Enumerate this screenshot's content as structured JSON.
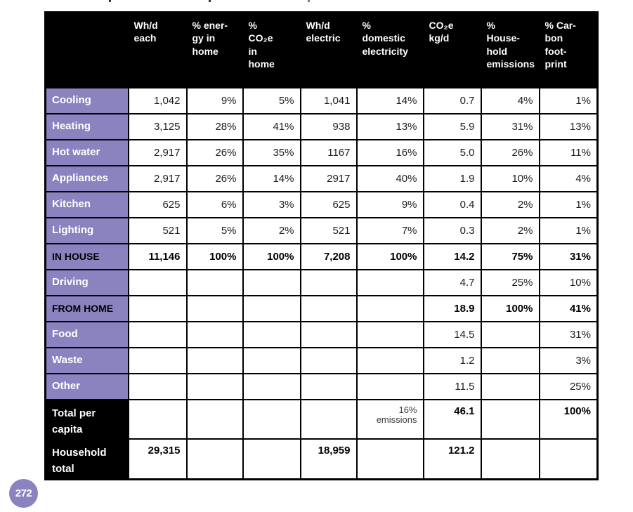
{
  "page": {
    "badge_number": "272"
  },
  "table": {
    "column_headers": [
      "",
      "Wh/d\neach",
      "% ener-\ngy in\nhome",
      "%\nCO₂e\nin\nhome",
      "Wh/d\nelectric",
      "%\ndomestic\nelectricity",
      "CO₂e\nkg/d",
      "%\nHouse-\nhold\nemissions",
      "% Car-\nbon\nfoot-\nprint"
    ],
    "rows": [
      {
        "label": "Cooling",
        "label_style": "purple",
        "size": "normal",
        "cells": [
          {
            "t": "1,042"
          },
          {
            "t": "9%"
          },
          {
            "t": "5%"
          },
          {
            "t": "1,041"
          },
          {
            "t": "14%"
          },
          {
            "t": "0.7"
          },
          {
            "t": "4%"
          },
          {
            "t": "1%"
          }
        ]
      },
      {
        "label": "Heating",
        "label_style": "purple",
        "size": "normal",
        "cells": [
          {
            "t": "3,125"
          },
          {
            "t": "28%"
          },
          {
            "t": "41%"
          },
          {
            "t": "938"
          },
          {
            "t": "13%"
          },
          {
            "t": "5.9"
          },
          {
            "t": "31%"
          },
          {
            "t": "13%"
          }
        ]
      },
      {
        "label": "Hot water",
        "label_style": "purple",
        "size": "normal",
        "cells": [
          {
            "t": "2,917"
          },
          {
            "t": "26%"
          },
          {
            "t": "35%"
          },
          {
            "t": "1167"
          },
          {
            "t": "16%"
          },
          {
            "t": "5.0"
          },
          {
            "t": "26%"
          },
          {
            "t": "11%"
          }
        ]
      },
      {
        "label": "Appliances",
        "label_style": "purple",
        "size": "normal",
        "cells": [
          {
            "t": "2,917"
          },
          {
            "t": "26%"
          },
          {
            "t": "14%"
          },
          {
            "t": "2917"
          },
          {
            "t": "40%"
          },
          {
            "t": "1.9"
          },
          {
            "t": "10%"
          },
          {
            "t": "4%"
          }
        ]
      },
      {
        "label": "Kitchen",
        "label_style": "purple",
        "size": "normal",
        "cells": [
          {
            "t": "625"
          },
          {
            "t": "6%"
          },
          {
            "t": "3%"
          },
          {
            "t": "625"
          },
          {
            "t": "9%"
          },
          {
            "t": "0.4"
          },
          {
            "t": "2%"
          },
          {
            "t": "1%"
          }
        ]
      },
      {
        "label": "Lighting",
        "label_style": "purple",
        "size": "normal",
        "cells": [
          {
            "t": "521"
          },
          {
            "t": "5%"
          },
          {
            "t": "2%"
          },
          {
            "t": "521"
          },
          {
            "t": "7%"
          },
          {
            "t": "0.3"
          },
          {
            "t": "2%"
          },
          {
            "t": "1%"
          }
        ]
      },
      {
        "label": "IN HOUSE",
        "label_style": "purple-dark",
        "size": "normal",
        "cells": [
          {
            "t": "11,146",
            "b": true
          },
          {
            "t": "100%",
            "b": true
          },
          {
            "t": "100%",
            "b": true
          },
          {
            "t": "7,208",
            "b": true
          },
          {
            "t": "100%",
            "b": true
          },
          {
            "t": "14.2",
            "b": true
          },
          {
            "t": "75%",
            "b": true
          },
          {
            "t": "31%",
            "b": true
          }
        ]
      },
      {
        "label": "Driving",
        "label_style": "purple",
        "size": "normal",
        "cells": [
          {
            "t": ""
          },
          {
            "t": ""
          },
          {
            "t": ""
          },
          {
            "t": ""
          },
          {
            "t": ""
          },
          {
            "t": "4.7"
          },
          {
            "t": "25%"
          },
          {
            "t": "10%"
          }
        ]
      },
      {
        "label": "FROM HOME",
        "label_style": "purple-dark",
        "size": "normal",
        "cells": [
          {
            "t": ""
          },
          {
            "t": ""
          },
          {
            "t": ""
          },
          {
            "t": ""
          },
          {
            "t": ""
          },
          {
            "t": "18.9",
            "b": true
          },
          {
            "t": "100%",
            "b": true
          },
          {
            "t": "41%",
            "b": true
          }
        ]
      },
      {
        "label": "Food",
        "label_style": "purple",
        "size": "normal",
        "cells": [
          {
            "t": ""
          },
          {
            "t": ""
          },
          {
            "t": ""
          },
          {
            "t": ""
          },
          {
            "t": ""
          },
          {
            "t": "14.5"
          },
          {
            "t": ""
          },
          {
            "t": "31%"
          }
        ]
      },
      {
        "label": "Waste",
        "label_style": "purple",
        "size": "normal",
        "cells": [
          {
            "t": ""
          },
          {
            "t": ""
          },
          {
            "t": ""
          },
          {
            "t": ""
          },
          {
            "t": ""
          },
          {
            "t": "1.2"
          },
          {
            "t": ""
          },
          {
            "t": "3%"
          }
        ]
      },
      {
        "label": "Other",
        "label_style": "purple",
        "size": "normal",
        "cells": [
          {
            "t": ""
          },
          {
            "t": ""
          },
          {
            "t": ""
          },
          {
            "t": ""
          },
          {
            "t": ""
          },
          {
            "t": "11.5"
          },
          {
            "t": ""
          },
          {
            "t": "25%"
          }
        ]
      },
      {
        "label": "Total per\ncapita",
        "label_style": "black",
        "size": "tall",
        "cells": [
          {
            "t": ""
          },
          {
            "t": ""
          },
          {
            "t": ""
          },
          {
            "t": ""
          },
          {
            "t": "16%\nemissions",
            "s": true
          },
          {
            "t": "46.1",
            "b": true
          },
          {
            "t": ""
          },
          {
            "t": "100%",
            "b": true
          }
        ]
      },
      {
        "label": "Household\ntotal",
        "label_style": "black",
        "size": "tall",
        "cells": [
          {
            "t": "29,315",
            "b": true
          },
          {
            "t": ""
          },
          {
            "t": ""
          },
          {
            "t": "18,959",
            "b": true
          },
          {
            "t": ""
          },
          {
            "t": "121.2",
            "b": true
          },
          {
            "t": ""
          },
          {
            "t": ""
          }
        ]
      }
    ]
  },
  "colors": {
    "accent_purple": "#8b83c0",
    "header_black": "#000000"
  }
}
